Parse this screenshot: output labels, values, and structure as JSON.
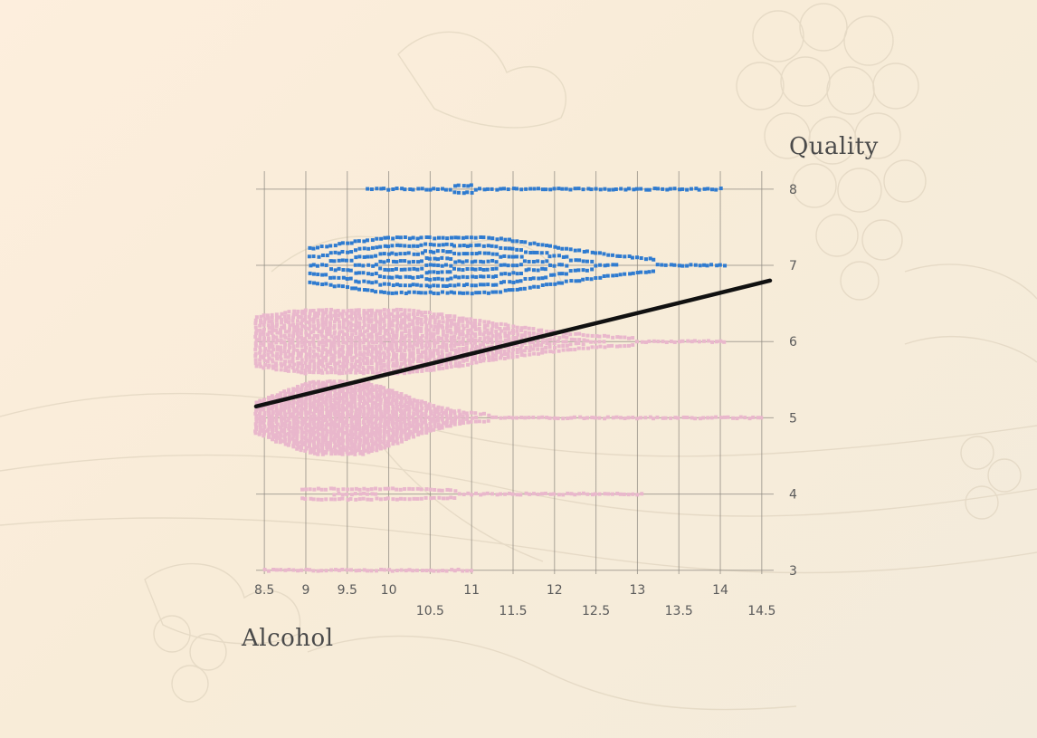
{
  "chart_data": {
    "type": "scatter",
    "xlabel": "Alcohol",
    "ylabel": "Quality",
    "xlim": [
      8.4,
      14.6
    ],
    "ylim": [
      2.95,
      8.2
    ],
    "grid": true,
    "x_ticks": [
      8.5,
      9,
      9.5,
      10,
      10.5,
      11,
      11.5,
      12,
      12.5,
      13,
      13.5,
      14,
      14.5
    ],
    "y_ticks": [
      3,
      4,
      5,
      6,
      7,
      8
    ],
    "colors": {
      "low": "#e9b7cc",
      "high": "#2f7bd0",
      "trend": "#111111"
    },
    "trend_line": {
      "x": [
        8.4,
        14.6
      ],
      "y": [
        5.15,
        6.8
      ]
    },
    "clusters": [
      {
        "quality": 8,
        "class": "high",
        "x_min": 9.75,
        "x_max": 14.0,
        "peak": 10.9,
        "spread": 0.25,
        "height": 0.09,
        "count": 22
      },
      {
        "quality": 7,
        "class": "high",
        "x_min": 9.05,
        "x_max": 14.05,
        "peak": 10.6,
        "spread": 1.4,
        "height": 0.72,
        "count": 520
      },
      {
        "quality": 6,
        "class": "low",
        "x_min": 8.4,
        "x_max": 14.05,
        "peak": 9.6,
        "spread": 1.45,
        "height": 0.82,
        "count": 1300
      },
      {
        "quality": 5,
        "class": "low",
        "x_min": 8.4,
        "x_max": 14.5,
        "peak": 9.4,
        "spread": 0.72,
        "height": 0.94,
        "count": 1300
      },
      {
        "quality": 4,
        "class": "low",
        "x_min": 8.95,
        "x_max": 13.05,
        "peak": 9.6,
        "spread": 1.2,
        "height": 0.13,
        "count": 110
      },
      {
        "quality": 3,
        "class": "low",
        "x_min": 8.5,
        "x_max": 11.0,
        "peak": 10.0,
        "spread": 0.7,
        "height": 0.03,
        "count": 20
      }
    ]
  }
}
